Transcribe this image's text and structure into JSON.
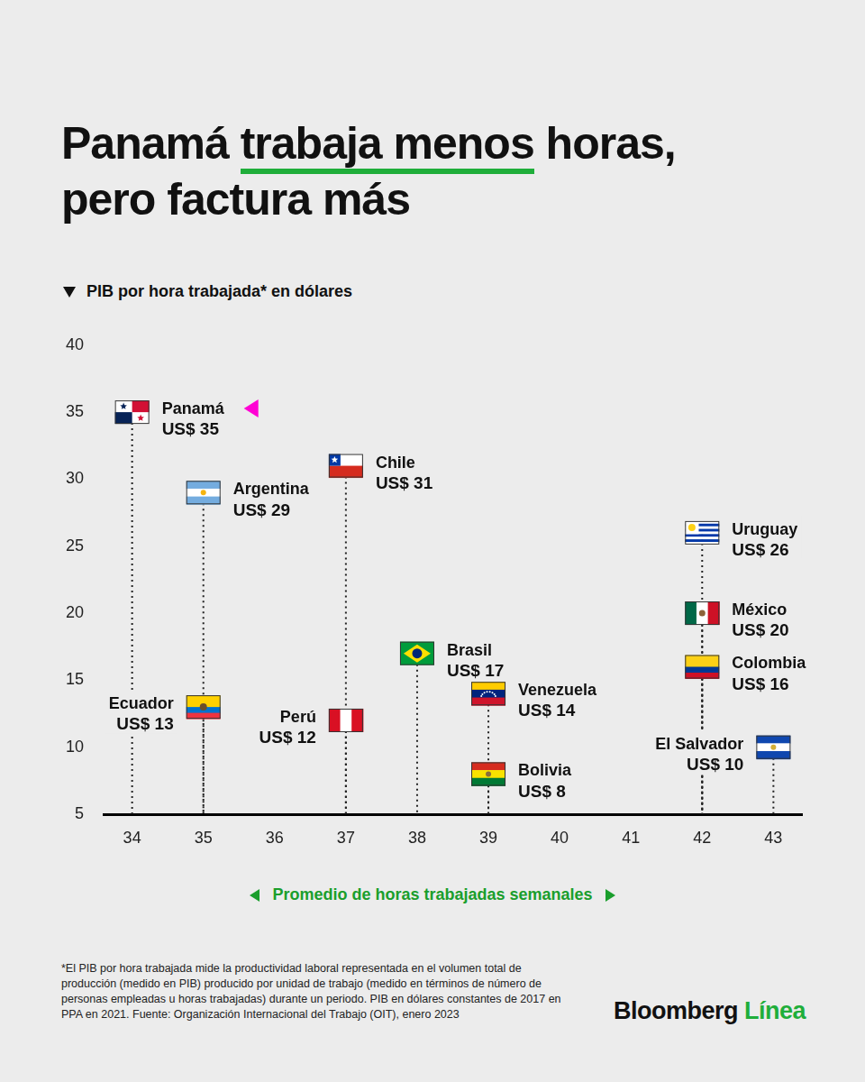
{
  "chart_data": {
    "type": "scatter",
    "title": "Panamá trabaja menos horas, pero factura más",
    "ylabel": "PIB por hora trabajada* en dólares",
    "xlabel": "Promedio de horas trabajadas semanales",
    "labels": [
      "Panamá",
      "Argentina",
      "Ecuador",
      "Chile",
      "Perú",
      "Brasil",
      "Venezuela",
      "Bolivia",
      "Uruguay",
      "México",
      "Colombia",
      "El Salvador"
    ],
    "x": [
      34,
      35,
      35,
      37,
      37,
      38,
      39,
      39,
      42,
      42,
      42,
      43
    ],
    "values": [
      35,
      29,
      13,
      31,
      12,
      17,
      14,
      8,
      26,
      20,
      16,
      10
    ],
    "value_labels": [
      "US$ 35",
      "US$ 29",
      "US$ 13",
      "US$ 31",
      "US$ 12",
      "US$ 17",
      "US$ 14",
      "US$ 8",
      "US$ 26",
      "US$ 20",
      "US$ 16",
      "US$ 10"
    ],
    "data_labels": true,
    "marker": "flag",
    "line_style": "dotted",
    "xlim": [
      33.6,
      43.4
    ],
    "xticks": [
      34,
      35,
      36,
      37,
      38,
      39,
      40,
      41,
      42,
      43
    ],
    "ylim": [
      5,
      40
    ],
    "yticks": [
      5,
      10,
      15,
      20,
      25,
      30,
      35,
      40
    ],
    "grid": false
  },
  "footnote": "*El PIB por hora trabajada mide la productividad laboral representada en el volumen total de producción (medido en PIB) producido por unidad de trabajo (medido en términos de número de personas empleadas u horas trabajadas) durante un periodo. PIB en dólares constantes de 2017 en PPA en 2021. Fuente: Organización Internacional del Trabajo (OIT), enero 2023",
  "brand": "Bloomberg Línea"
}
